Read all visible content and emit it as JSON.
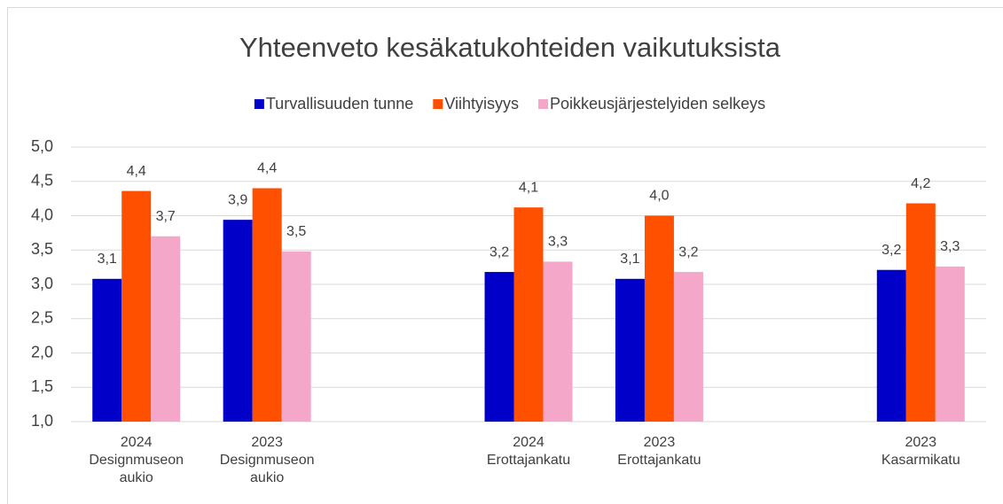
{
  "chart_data": {
    "type": "bar",
    "title": "Yhteenveto kesäkatukohteiden vaikutuksista",
    "categories": [
      "2024\nDesignmuseon\naukio",
      "2023\nDesignmuseon\naukio",
      null,
      "2024\nErottajankatu",
      "2023\nErottajankatu",
      null,
      "2023\nKasarmikatu"
    ],
    "series": [
      {
        "name": "Turvallisuuden tunne",
        "color": "#0000c8",
        "values": [
          3.08,
          3.94,
          null,
          3.18,
          3.08,
          null,
          3.21
        ],
        "value_labels": [
          "3,1",
          "3,9",
          null,
          "3,2",
          "3,1",
          null,
          "3,2"
        ]
      },
      {
        "name": "Viihtyisyys",
        "color": "#ff5000",
        "values": [
          4.36,
          4.4,
          null,
          4.12,
          4.0,
          null,
          4.18
        ],
        "value_labels": [
          "4,4",
          "4,4",
          null,
          "4,1",
          "4,0",
          null,
          "4,2"
        ]
      },
      {
        "name": "Poikkeusjärjestelyiden selkeys",
        "color": "#f4a7c9",
        "values": [
          3.7,
          3.48,
          null,
          3.33,
          3.18,
          null,
          3.26
        ],
        "value_labels": [
          "3,7",
          "3,5",
          null,
          "3,3",
          "3,2",
          null,
          "3,3"
        ]
      }
    ],
    "ylim": [
      1,
      5
    ],
    "yticks": [
      {
        "value": 1,
        "label": "1,0"
      },
      {
        "value": 1.5,
        "label": "1,5"
      },
      {
        "value": 2,
        "label": "2,0"
      },
      {
        "value": 2.5,
        "label": "2,5"
      },
      {
        "value": 3,
        "label": "3,0"
      },
      {
        "value": 3.5,
        "label": "3,5"
      },
      {
        "value": 4,
        "label": "4,0"
      },
      {
        "value": 4.5,
        "label": "4,5"
      },
      {
        "value": 5,
        "label": "5,0"
      }
    ],
    "grid": true,
    "legend": "top"
  }
}
